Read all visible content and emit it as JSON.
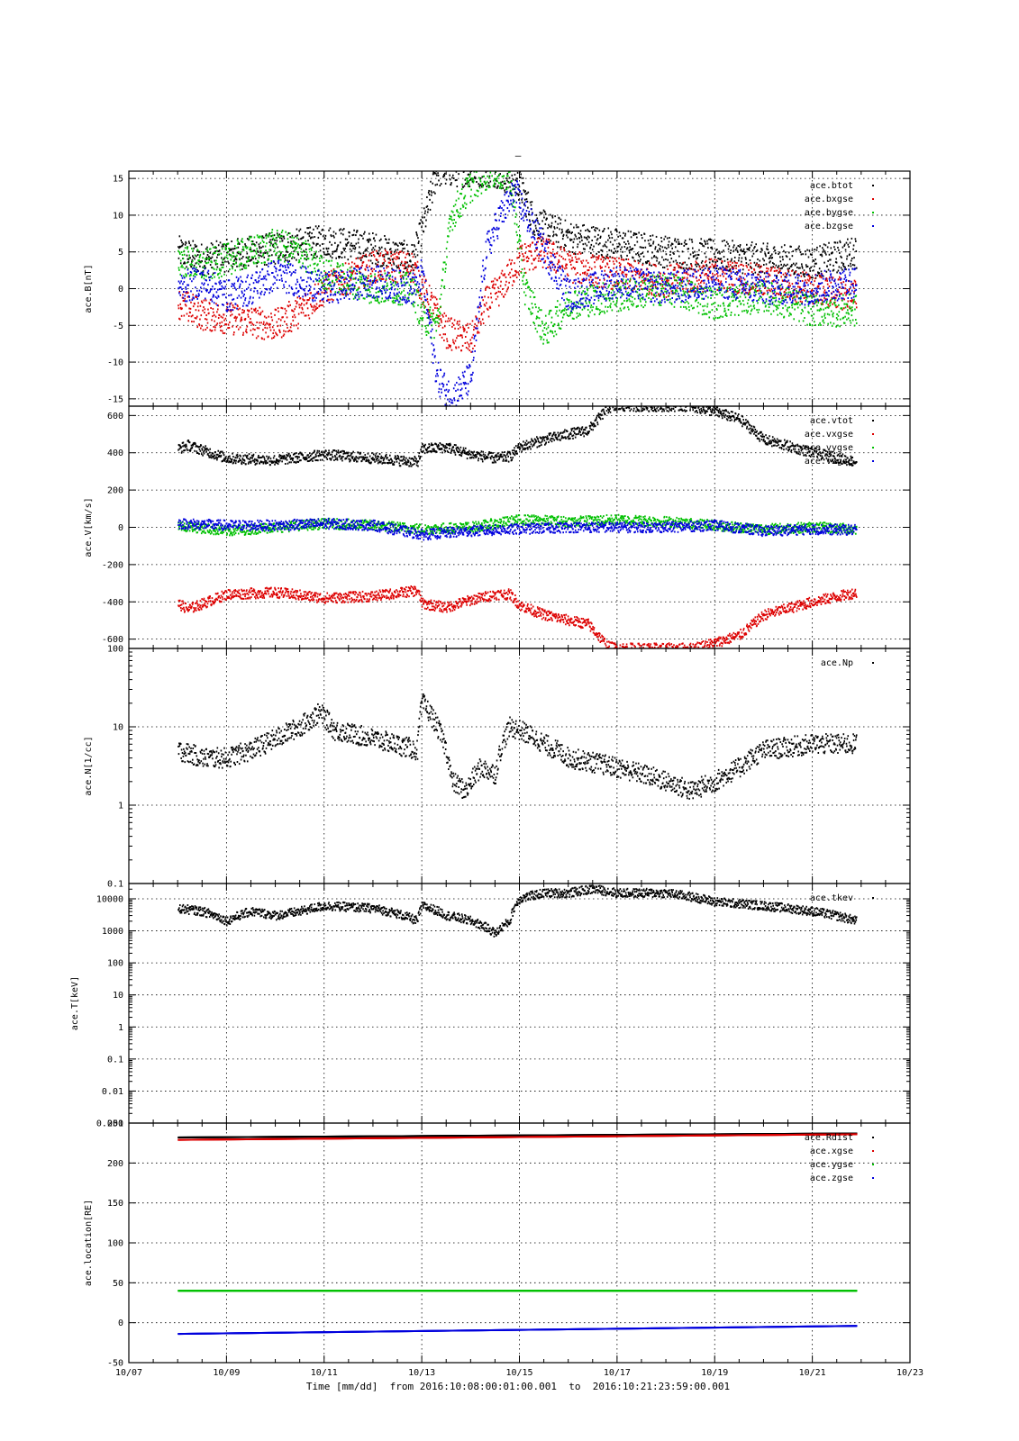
{
  "figure": {
    "top_mark": "–",
    "xlabel": "Time [mm/dd]  from 2016:10:08:00:01:00.001  to  2016:10:21:23:59:00.001",
    "x_range_days": [
      0,
      16
    ],
    "x_ticks": [
      {
        "day": 0,
        "label": "10/07"
      },
      {
        "day": 2,
        "label": "10/09"
      },
      {
        "day": 4,
        "label": "10/11"
      },
      {
        "day": 6,
        "label": "10/13"
      },
      {
        "day": 8,
        "label": "10/15"
      },
      {
        "day": 10,
        "label": "10/17"
      },
      {
        "day": 12,
        "label": "10/19"
      },
      {
        "day": 14,
        "label": "10/21"
      },
      {
        "day": 16,
        "label": "10/23"
      }
    ],
    "colors": {
      "black": "#000000",
      "red": "#dd0000",
      "green": "#00c000",
      "blue": "#0000dd"
    }
  },
  "chart_data": [
    {
      "type": "scatter",
      "ylabel": "ace.B[nT]",
      "ylim": [
        -16,
        16
      ],
      "yscale": "linear",
      "y_ticks": [
        -15,
        -10,
        -5,
        0,
        5,
        10,
        15
      ],
      "grid": true,
      "legend_position": "top-right",
      "x_unit": "days since 10/07 00:00",
      "series": [
        {
          "name": "ace.btot",
          "color": "#000000",
          "x": [
            1,
            1.5,
            2,
            3,
            4,
            5,
            5.8,
            6,
            6.3,
            6.6,
            7,
            7.5,
            8,
            8.3,
            9,
            10,
            11,
            12,
            13,
            14,
            14.9
          ],
          "y": [
            5,
            4,
            4.5,
            5.5,
            6.5,
            5.5,
            4,
            8,
            16,
            16,
            16,
            16,
            14,
            9,
            7,
            6,
            5,
            4.5,
            4,
            3.5,
            5
          ]
        },
        {
          "name": "ace.bxgse",
          "color": "#dd0000",
          "x": [
            1,
            1.5,
            2,
            2.5,
            3,
            3.5,
            4,
            5,
            5.8,
            6,
            6.5,
            7,
            7.3,
            7.6,
            8,
            8.5,
            9,
            10,
            11,
            12,
            13,
            14,
            14.9
          ],
          "y": [
            -2,
            -3.5,
            -4,
            -4.5,
            -5,
            -3,
            0,
            3,
            3,
            0,
            -6,
            -7,
            -2,
            0,
            4,
            5,
            3,
            2,
            1,
            2,
            1,
            0,
            -1
          ]
        },
        {
          "name": "ace.bygse",
          "color": "#00c000",
          "x": [
            1,
            1.5,
            2,
            2.5,
            3,
            3.5,
            4,
            5,
            5.8,
            6,
            6.3,
            6.6,
            7,
            7.4,
            7.8,
            8.1,
            8.5,
            9,
            10,
            11,
            12,
            13,
            14,
            14.9
          ],
          "y": [
            4,
            3,
            4,
            5,
            6,
            5,
            2,
            0,
            0,
            -4,
            -5,
            10,
            14,
            16,
            15,
            0,
            -6,
            -2,
            -1,
            0,
            -2,
            -1,
            -3,
            -3
          ]
        },
        {
          "name": "ace.bzgse",
          "color": "#0000dd",
          "x": [
            1,
            1.5,
            2,
            2.5,
            3,
            3.5,
            4,
            5,
            5.8,
            6,
            6.3,
            6.6,
            7,
            7.3,
            7.6,
            7.9,
            8.2,
            8.6,
            9,
            10,
            11,
            12,
            13,
            14,
            14.9
          ],
          "y": [
            0,
            1,
            -1,
            0,
            2,
            1,
            0,
            1,
            0,
            2,
            -12,
            -15,
            -12,
            5,
            10,
            13,
            9,
            4,
            -1,
            1,
            0,
            1,
            0,
            0,
            1
          ]
        }
      ]
    },
    {
      "type": "scatter",
      "ylabel": "ace.V[km/s]",
      "ylim": [
        -650,
        650
      ],
      "yscale": "linear",
      "y_ticks": [
        -600,
        -400,
        -200,
        0,
        200,
        400,
        600
      ],
      "grid": true,
      "legend_position": "top-right",
      "x_unit": "days since 10/07 00:00",
      "series": [
        {
          "name": "ace.vtot",
          "color": "#000000",
          "x": [
            1,
            1.2,
            2,
            3,
            4,
            5,
            5.9,
            6,
            6.5,
            7,
            7.5,
            7.8,
            8,
            8.5,
            9,
            9.4,
            9.8,
            10,
            11,
            11.5,
            12,
            12.5,
            13,
            14,
            14.9
          ],
          "y": [
            420,
            440,
            370,
            360,
            390,
            370,
            350,
            420,
            430,
            390,
            370,
            380,
            430,
            470,
            500,
            520,
            640,
            650,
            650,
            650,
            620,
            580,
            470,
            400,
            350
          ]
        },
        {
          "name": "ace.vxgse",
          "color": "#dd0000",
          "x": [
            1,
            1.2,
            2,
            3,
            4,
            5,
            5.9,
            6,
            6.5,
            7,
            7.5,
            7.8,
            8,
            8.5,
            9,
            9.4,
            9.8,
            10,
            11,
            11.5,
            12,
            12.5,
            13,
            14,
            14.9
          ],
          "y": [
            -410,
            -440,
            -360,
            -350,
            -380,
            -370,
            -340,
            -410,
            -430,
            -390,
            -360,
            -360,
            -420,
            -470,
            -500,
            -520,
            -640,
            -650,
            -650,
            -650,
            -620,
            -580,
            -470,
            -400,
            -350
          ]
        },
        {
          "name": "ace.vygse",
          "color": "#00c000",
          "x": [
            1,
            2,
            3,
            4,
            5,
            6,
            7,
            8,
            9,
            10,
            11,
            12,
            13,
            14,
            14.9
          ],
          "y": [
            10,
            -20,
            0,
            20,
            10,
            -10,
            0,
            40,
            30,
            40,
            30,
            10,
            -10,
            0,
            -10
          ]
        },
        {
          "name": "ace.vzgse",
          "color": "#0000dd",
          "x": [
            1,
            2,
            3,
            4,
            5,
            6,
            7,
            8,
            9,
            10,
            11,
            12,
            13,
            14,
            14.9
          ],
          "y": [
            20,
            10,
            10,
            20,
            10,
            -40,
            -20,
            -10,
            0,
            0,
            0,
            10,
            -20,
            -10,
            -15
          ]
        }
      ]
    },
    {
      "type": "scatter",
      "ylabel": "ace.N[1/cc]",
      "ylim": [
        0.1,
        100
      ],
      "yscale": "log",
      "y_ticks": [
        0.1,
        1,
        10,
        100
      ],
      "grid": true,
      "legend_position": "top-right",
      "x_unit": "days since 10/07 00:00",
      "series": [
        {
          "name": "ace.Np",
          "color": "#000000",
          "x": [
            1,
            1.5,
            2,
            2.5,
            3,
            3.5,
            3.9,
            4.2,
            5,
            5.9,
            6,
            6.3,
            6.6,
            6.9,
            7.2,
            7.5,
            7.8,
            8,
            8.5,
            9,
            10,
            11,
            11.5,
            12,
            12.5,
            13,
            14,
            14.9
          ],
          "y": [
            5,
            4,
            4,
            5,
            7,
            10,
            15,
            9,
            7,
            5,
            20,
            10,
            2,
            1.5,
            3,
            2.5,
            10,
            9,
            6,
            4,
            3,
            2,
            1.5,
            2,
            3,
            5,
            6,
            6
          ]
        }
      ]
    },
    {
      "type": "scatter",
      "ylabel": "ace.T[keV]",
      "ylim": [
        0.001,
        30000
      ],
      "yscale": "log",
      "y_ticks": [
        0.001,
        0.01,
        0.1,
        1,
        10,
        100,
        1000,
        10000
      ],
      "y_tick_labels": [
        "0.001",
        "0.01",
        "0.1",
        "1",
        "10",
        "100",
        "1000",
        "10000"
      ],
      "grid": true,
      "legend_position": "top-right",
      "x_unit": "days since 10/07 00:00",
      "series": [
        {
          "name": "ace.tkev",
          "color": "#000000",
          "x": [
            1,
            1.5,
            2,
            2.5,
            3,
            3.5,
            4,
            5,
            5.9,
            6,
            6.5,
            7,
            7.5,
            7.8,
            8,
            8.5,
            9,
            9.5,
            10,
            11,
            12,
            13,
            14,
            14.9
          ],
          "y": [
            5000,
            4000,
            2000,
            4000,
            3000,
            4000,
            6000,
            5000,
            2000,
            6000,
            3000,
            2000,
            800,
            2000,
            10000,
            15000,
            15000,
            20000,
            15000,
            15000,
            8000,
            6000,
            4000,
            2000
          ]
        }
      ]
    },
    {
      "type": "scatter",
      "ylabel": "ace.location[RE]",
      "ylim": [
        -50,
        250
      ],
      "yscale": "linear",
      "y_ticks": [
        -50,
        0,
        50,
        100,
        150,
        200,
        250
      ],
      "grid": true,
      "legend_position": "top-right",
      "x_unit": "days since 10/07 00:00",
      "series": [
        {
          "name": "ace.Rdist",
          "color": "#000000",
          "x": [
            1,
            14.9
          ],
          "y": [
            232,
            237
          ]
        },
        {
          "name": "ace.xgse",
          "color": "#dd0000",
          "x": [
            1,
            14.9
          ],
          "y": [
            229,
            236
          ]
        },
        {
          "name": "ace.ygse",
          "color": "#00c000",
          "x": [
            1,
            14.9
          ],
          "y": [
            40,
            40
          ]
        },
        {
          "name": "ace.zgse",
          "color": "#0000dd",
          "x": [
            1,
            14.9
          ],
          "y": [
            -14,
            -4
          ]
        }
      ]
    }
  ]
}
